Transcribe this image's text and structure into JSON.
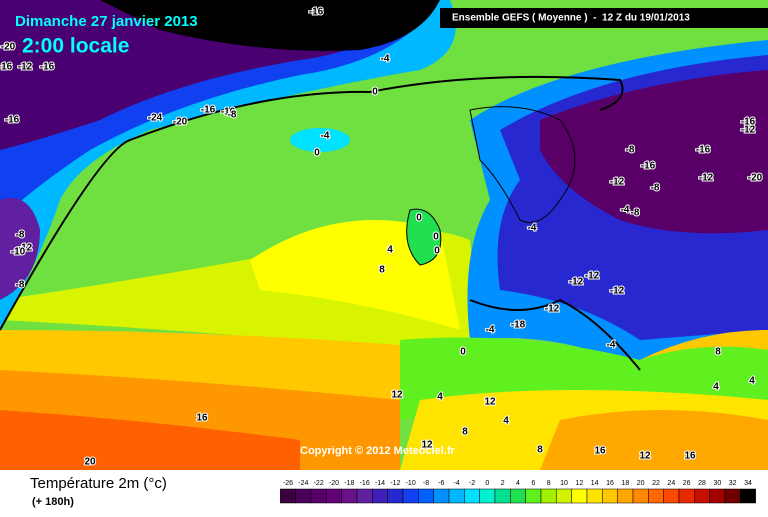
{
  "header": {
    "title": "Dimanche 27 janvier 2013",
    "time": "2:00 locale",
    "model": "Ensemble GEFS ( Moyenne )  -  12 Z du 19/01/2013"
  },
  "copyright": "Copyright © 2012 Meteociel.fr",
  "legend": {
    "title": "Température 2m (°c)",
    "lead": "(+ 180h)",
    "ticks": [
      -26,
      -24,
      -22,
      -20,
      -18,
      -16,
      -14,
      -12,
      -10,
      -8,
      -6,
      -4,
      -2,
      0,
      2,
      4,
      6,
      8,
      10,
      12,
      14,
      16,
      18,
      20,
      22,
      24,
      26,
      28,
      30,
      32,
      34
    ],
    "colors": [
      "#3c0040",
      "#4a0058",
      "#580068",
      "#660078",
      "#6a1088",
      "#6020a0",
      "#4020b8",
      "#2828d0",
      "#1040f0",
      "#0060ff",
      "#0090ff",
      "#00b8ff",
      "#00e0ff",
      "#00f0d0",
      "#00e090",
      "#20e050",
      "#60f020",
      "#a0f000",
      "#d0f400",
      "#ffff00",
      "#ffe400",
      "#ffc800",
      "#ffa800",
      "#ff8800",
      "#ff6800",
      "#ff4800",
      "#e82800",
      "#c81000",
      "#a00000",
      "#700000",
      "#000000"
    ]
  },
  "contour_labels": [
    -16,
    -20,
    -16,
    -12,
    -16,
    -16,
    -4,
    0,
    -24,
    -20,
    -16,
    -16,
    -8,
    -4,
    0,
    -16,
    -12,
    -8,
    -16,
    -16,
    -12,
    -8,
    -12,
    -20,
    -4,
    -8,
    0,
    0,
    0,
    4,
    8,
    -4,
    -12,
    -12,
    -12,
    -12,
    -4,
    -18,
    -4,
    0,
    8,
    4,
    4,
    12,
    4,
    12,
    4,
    8,
    12,
    16,
    20,
    8,
    16,
    12,
    16,
    -8,
    -12,
    -10,
    -8
  ]
}
